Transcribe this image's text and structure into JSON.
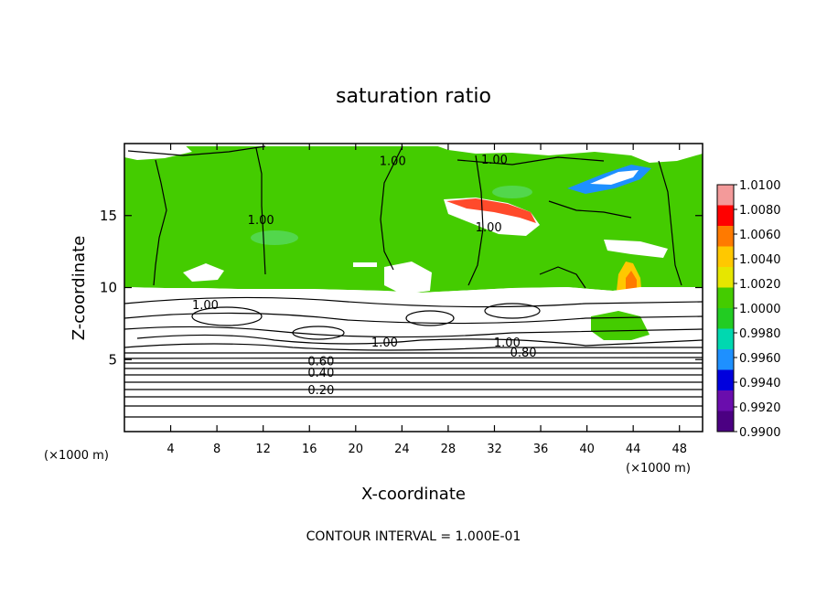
{
  "chart_data": {
    "type": "heatmap",
    "title": "saturation ratio",
    "xlabel": "X-coordinate",
    "ylabel": "Z-coordinate",
    "x_unit": "(×1000 m)",
    "y_unit": "(×1000 m)",
    "xlim": [
      0,
      50
    ],
    "ylim": [
      0,
      20
    ],
    "x_ticks": [
      "4",
      "8",
      "12",
      "16",
      "20",
      "24",
      "28",
      "32",
      "36",
      "40",
      "44",
      "48"
    ],
    "x_tick_values": [
      4,
      8,
      12,
      16,
      20,
      24,
      28,
      32,
      36,
      40,
      44,
      48
    ],
    "y_ticks": [
      "5",
      "10",
      "15"
    ],
    "y_tick_values": [
      5,
      10,
      15
    ],
    "contour_interval_note": "CONTOUR INTERVAL = 1.000E-01",
    "colorbar": {
      "labels": [
        "1.0100",
        "1.0080",
        "1.0060",
        "1.0040",
        "1.0020",
        "1.0000",
        "0.9980",
        "0.9960",
        "0.9940",
        "0.9920",
        "0.9900"
      ],
      "colors": [
        "#f39a9a",
        "#ff0000",
        "#ff7a00",
        "#ffc800",
        "#e6e600",
        "#44cc00",
        "#22cc22",
        "#00d8b0",
        "#1e90ff",
        "#0000dd",
        "#6a0dad",
        "#4b0082"
      ]
    },
    "contour_labels": [
      {
        "text": "1.00",
        "x": 11.8,
        "y": 14.4
      },
      {
        "text": "1.00",
        "x": 23.2,
        "y": 18.5
      },
      {
        "text": "1.00",
        "x": 32.0,
        "y": 18.6
      },
      {
        "text": "1.00",
        "x": 31.5,
        "y": 13.9
      },
      {
        "text": "1.00",
        "x": 7.0,
        "y": 8.5
      },
      {
        "text": "1.00",
        "x": 22.5,
        "y": 5.9
      },
      {
        "text": "1.00",
        "x": 33.1,
        "y": 5.9
      },
      {
        "text": "0.80",
        "x": 34.5,
        "y": 5.2
      },
      {
        "text": "0.60",
        "x": 17.0,
        "y": 4.6
      },
      {
        "text": "0.40",
        "x": 17.0,
        "y": 3.8
      },
      {
        "text": "0.20",
        "x": 17.0,
        "y": 2.6
      }
    ]
  }
}
